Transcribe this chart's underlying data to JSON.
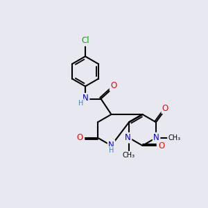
{
  "background_color": "#e8e8f0",
  "atom_colors": {
    "C": "#000000",
    "N": "#0000cd",
    "O": "#ff0000",
    "Cl": "#00aa00",
    "H": "#4682b4"
  },
  "bond_color": "#000000",
  "bond_width": 1.5,
  "figsize": [
    3.0,
    3.0
  ],
  "dpi": 100
}
